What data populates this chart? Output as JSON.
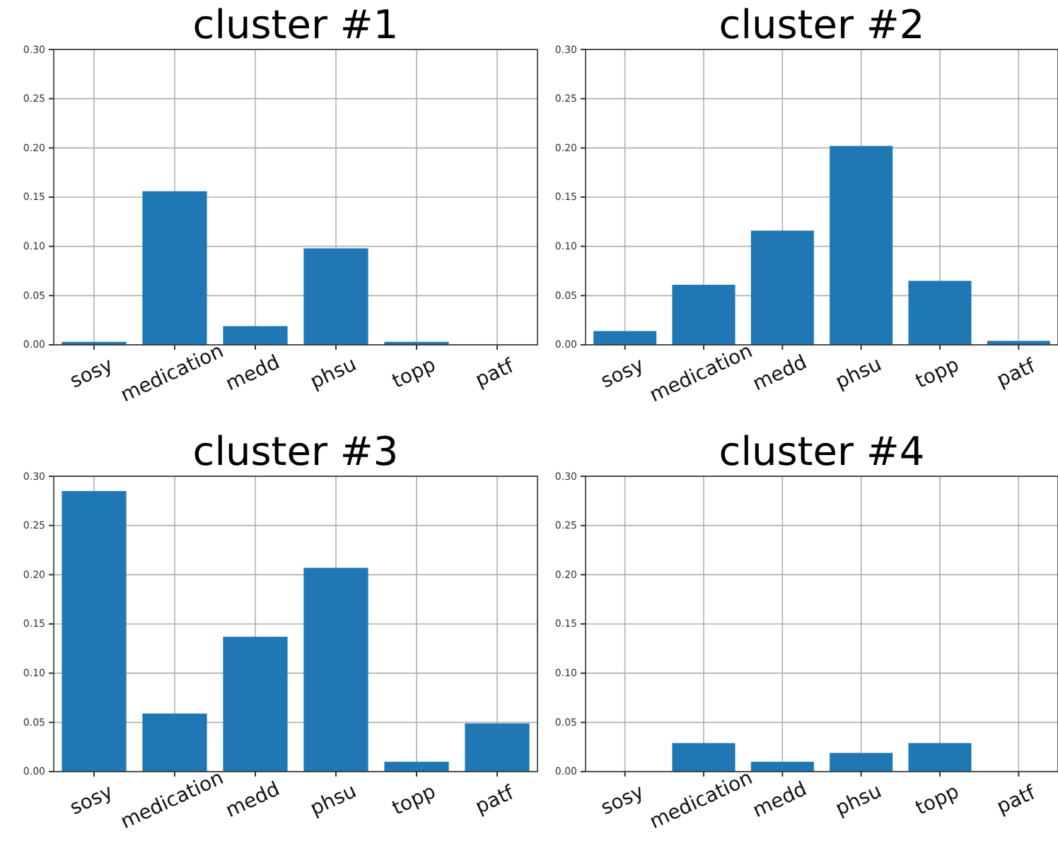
{
  "chart_data": [
    {
      "type": "bar",
      "title": "cluster #1",
      "categories": [
        "sosy",
        "medication",
        "medd",
        "phsu",
        "topp",
        "patf"
      ],
      "values": [
        0.003,
        0.156,
        0.019,
        0.098,
        0.003,
        0
      ],
      "color": "#1f77b4",
      "ylim": [
        0,
        0.3
      ],
      "yticks": [
        {
          "value": 0,
          "label": "0.00"
        },
        {
          "value": 0.05,
          "label": "0.05"
        },
        {
          "value": 0.1,
          "label": "0.10"
        },
        {
          "value": 0.15,
          "label": "0.15"
        },
        {
          "value": 0.2,
          "label": "0.20"
        },
        {
          "value": 0.25,
          "label": "0.25"
        },
        {
          "value": 0.3,
          "label": "0.30"
        }
      ],
      "grid": true
    },
    {
      "type": "bar",
      "title": "cluster #2",
      "categories": [
        "sosy",
        "medication",
        "medd",
        "phsu",
        "topp",
        "patf"
      ],
      "values": [
        0.014,
        0.061,
        0.116,
        0.202,
        0.065,
        0.004
      ],
      "color": "#1f77b4",
      "ylim": [
        0,
        0.3
      ],
      "yticks": [
        {
          "value": 0,
          "label": "0.00"
        },
        {
          "value": 0.05,
          "label": "0.05"
        },
        {
          "value": 0.1,
          "label": "0.10"
        },
        {
          "value": 0.15,
          "label": "0.15"
        },
        {
          "value": 0.2,
          "label": "0.20"
        },
        {
          "value": 0.25,
          "label": "0.25"
        },
        {
          "value": 0.3,
          "label": "0.30"
        }
      ],
      "grid": true
    },
    {
      "type": "bar",
      "title": "cluster #3",
      "categories": [
        "sosy",
        "medication",
        "medd",
        "phsu",
        "topp",
        "patf"
      ],
      "values": [
        0.285,
        0.059,
        0.137,
        0.207,
        0.01,
        0.049
      ],
      "color": "#1f77b4",
      "ylim": [
        0,
        0.3
      ],
      "yticks": [
        {
          "value": 0,
          "label": "0.00"
        },
        {
          "value": 0.05,
          "label": "0.05"
        },
        {
          "value": 0.1,
          "label": "0.10"
        },
        {
          "value": 0.15,
          "label": "0.15"
        },
        {
          "value": 0.2,
          "label": "0.20"
        },
        {
          "value": 0.25,
          "label": "0.25"
        },
        {
          "value": 0.3,
          "label": "0.30"
        }
      ],
      "grid": true
    },
    {
      "type": "bar",
      "title": "cluster #4",
      "categories": [
        "sosy",
        "medication",
        "medd",
        "phsu",
        "topp",
        "patf"
      ],
      "values": [
        0,
        0.029,
        0.01,
        0.019,
        0.029,
        0
      ],
      "color": "#1f77b4",
      "ylim": [
        0,
        0.3
      ],
      "yticks": [
        {
          "value": 0,
          "label": "0.00"
        },
        {
          "value": 0.05,
          "label": "0.05"
        },
        {
          "value": 0.1,
          "label": "0.10"
        },
        {
          "value": 0.15,
          "label": "0.15"
        },
        {
          "value": 0.2,
          "label": "0.20"
        },
        {
          "value": 0.25,
          "label": "0.25"
        },
        {
          "value": 0.3,
          "label": "0.30"
        }
      ],
      "grid": true
    }
  ]
}
